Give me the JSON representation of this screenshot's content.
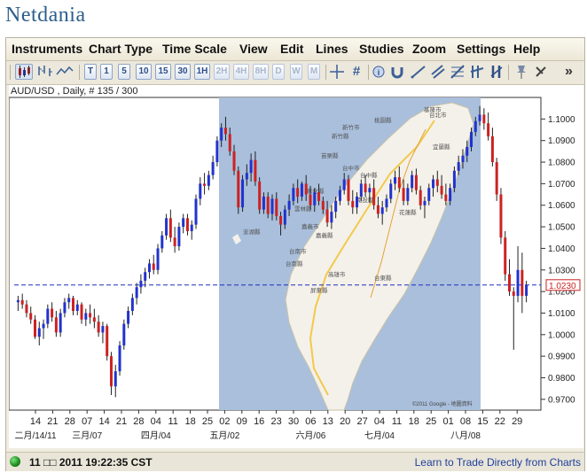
{
  "brand": "Netdania",
  "menu": [
    "Instruments",
    "Chart Type",
    "Time Scale",
    "View",
    "Edit",
    "Lines",
    "Studies",
    "Zoom",
    "Settings",
    "Help"
  ],
  "toolbar": {
    "chart_type_icons": [
      "candlestick-chart-icon",
      "bar-chart-icon",
      "line-chart-icon"
    ],
    "timescales": [
      "T",
      "1",
      "5",
      "10",
      "15",
      "30",
      "1H",
      "2H",
      "4H",
      "8H",
      "D",
      "W",
      "M"
    ],
    "tool_icons": [
      "crosshair-icon",
      "grid-icon",
      "info-icon",
      "magnet-icon",
      "trendline-icon",
      "channel-icon",
      "fibonacci-icon",
      "parallel-lines-icon",
      "vertical-tools-icon",
      "pin-icon",
      "delete-icon"
    ],
    "more": "»"
  },
  "symbol_label": "AUD/USD , Daily, # 135 / 300",
  "status": {
    "time": "11 □□ 2011 19:22:35 CST",
    "link": "Learn to Trade Directly from Charts"
  },
  "map_overlay": {
    "copyright": "©2011 Google - 地圖資料",
    "cities": [
      "基隆市",
      "台北市",
      "桃園縣",
      "新竹市",
      "新竹縣",
      "宜蘭縣",
      "苗栗縣",
      "台中市",
      "台中縣",
      "彰化縣",
      "南投縣",
      "雲林縣",
      "花蓮縣",
      "嘉義市",
      "嘉義縣",
      "台南市",
      "台南縣",
      "高雄市",
      "台東縣",
      "屏東縣",
      "澎湖縣"
    ]
  },
  "chart_data": {
    "type": "candlestick",
    "symbol": "AUD/USD",
    "current_price": "1.0230",
    "ylim": [
      0.965,
      1.11
    ],
    "y_ticks": [
      "1.1000",
      "1.0900",
      "1.0800",
      "1.0700",
      "1.0600",
      "1.0500",
      "1.0400",
      "1.0300",
      "1.0200",
      "1.0100",
      "1.0000",
      "0.9900",
      "0.9800",
      "0.9700"
    ],
    "x_day_ticks": [
      "14",
      "21",
      "28",
      "07",
      "14",
      "21",
      "28",
      "04",
      "11",
      "18",
      "25",
      "02",
      "09",
      "16",
      "23",
      "30",
      "06",
      "13",
      "20",
      "27",
      "04",
      "11",
      "18",
      "25",
      "01",
      "08",
      "15",
      "22",
      "29"
    ],
    "x_month_ticks": [
      "二月/14/11",
      "三月/07",
      "四月/04",
      "五月/02",
      "六月/06",
      "七月/04",
      "八月/08"
    ],
    "candles": [
      {
        "o": 1.015,
        "h": 1.018,
        "l": 1.011,
        "c": 1.016
      },
      {
        "o": 1.016,
        "h": 1.019,
        "l": 1.012,
        "c": 1.014
      },
      {
        "o": 1.014,
        "h": 1.016,
        "l": 1.008,
        "c": 1.01
      },
      {
        "o": 1.01,
        "h": 1.013,
        "l": 1.005,
        "c": 1.007
      },
      {
        "o": 1.007,
        "h": 1.009,
        "l": 0.998,
        "c": 0.999
      },
      {
        "o": 0.999,
        "h": 1.006,
        "l": 0.995,
        "c": 1.003
      },
      {
        "o": 1.003,
        "h": 1.007,
        "l": 0.998,
        "c": 1.005
      },
      {
        "o": 1.005,
        "h": 1.014,
        "l": 1.003,
        "c": 1.012
      },
      {
        "o": 1.012,
        "h": 1.015,
        "l": 1.006,
        "c": 1.008
      },
      {
        "o": 1.008,
        "h": 1.011,
        "l": 0.999,
        "c": 1.001
      },
      {
        "o": 1.001,
        "h": 1.012,
        "l": 0.999,
        "c": 1.01
      },
      {
        "o": 1.01,
        "h": 1.017,
        "l": 1.008,
        "c": 1.015
      },
      {
        "o": 1.015,
        "h": 1.019,
        "l": 1.012,
        "c": 1.017
      },
      {
        "o": 1.017,
        "h": 1.018,
        "l": 1.009,
        "c": 1.011
      },
      {
        "o": 1.011,
        "h": 1.016,
        "l": 1.009,
        "c": 1.014
      },
      {
        "o": 1.014,
        "h": 1.015,
        "l": 1.005,
        "c": 1.007
      },
      {
        "o": 1.007,
        "h": 1.012,
        "l": 1.004,
        "c": 1.01
      },
      {
        "o": 1.01,
        "h": 1.014,
        "l": 1.005,
        "c": 1.008
      },
      {
        "o": 1.008,
        "h": 1.012,
        "l": 1.003,
        "c": 1.006
      },
      {
        "o": 1.006,
        "h": 1.009,
        "l": 0.999,
        "c": 1.001
      },
      {
        "o": 1.001,
        "h": 1.006,
        "l": 0.996,
        "c": 1.004
      },
      {
        "o": 1.004,
        "h": 1.005,
        "l": 0.988,
        "c": 0.99
      },
      {
        "o": 0.99,
        "h": 0.992,
        "l": 0.972,
        "c": 0.976
      },
      {
        "o": 0.976,
        "h": 0.986,
        "l": 0.971,
        "c": 0.983
      },
      {
        "o": 0.983,
        "h": 0.997,
        "l": 0.981,
        "c": 0.995
      },
      {
        "o": 0.995,
        "h": 1.007,
        "l": 0.993,
        "c": 1.005
      },
      {
        "o": 1.005,
        "h": 1.013,
        "l": 1.003,
        "c": 1.011
      },
      {
        "o": 1.011,
        "h": 1.019,
        "l": 1.009,
        "c": 1.017
      },
      {
        "o": 1.017,
        "h": 1.024,
        "l": 1.014,
        "c": 1.022
      },
      {
        "o": 1.022,
        "h": 1.028,
        "l": 1.019,
        "c": 1.025
      },
      {
        "o": 1.025,
        "h": 1.031,
        "l": 1.022,
        "c": 1.029
      },
      {
        "o": 1.029,
        "h": 1.035,
        "l": 1.026,
        "c": 1.033
      },
      {
        "o": 1.033,
        "h": 1.037,
        "l": 1.028,
        "c": 1.03
      },
      {
        "o": 1.03,
        "h": 1.042,
        "l": 1.028,
        "c": 1.04
      },
      {
        "o": 1.04,
        "h": 1.048,
        "l": 1.038,
        "c": 1.046
      },
      {
        "o": 1.046,
        "h": 1.056,
        "l": 1.044,
        "c": 1.054
      },
      {
        "o": 1.054,
        "h": 1.058,
        "l": 1.043,
        "c": 1.045
      },
      {
        "o": 1.045,
        "h": 1.05,
        "l": 1.038,
        "c": 1.041
      },
      {
        "o": 1.041,
        "h": 1.052,
        "l": 1.039,
        "c": 1.05
      },
      {
        "o": 1.05,
        "h": 1.056,
        "l": 1.047,
        "c": 1.054
      },
      {
        "o": 1.054,
        "h": 1.056,
        "l": 1.046,
        "c": 1.048
      },
      {
        "o": 1.048,
        "h": 1.053,
        "l": 1.044,
        "c": 1.051
      },
      {
        "o": 1.051,
        "h": 1.065,
        "l": 1.049,
        "c": 1.063
      },
      {
        "o": 1.063,
        "h": 1.073,
        "l": 1.06,
        "c": 1.07
      },
      {
        "o": 1.07,
        "h": 1.075,
        "l": 1.065,
        "c": 1.069
      },
      {
        "o": 1.069,
        "h": 1.076,
        "l": 1.067,
        "c": 1.074
      },
      {
        "o": 1.074,
        "h": 1.083,
        "l": 1.072,
        "c": 1.08
      },
      {
        "o": 1.08,
        "h": 1.092,
        "l": 1.078,
        "c": 1.09
      },
      {
        "o": 1.09,
        "h": 1.098,
        "l": 1.087,
        "c": 1.096
      },
      {
        "o": 1.096,
        "h": 1.101,
        "l": 1.09,
        "c": 1.093
      },
      {
        "o": 1.093,
        "h": 1.096,
        "l": 1.083,
        "c": 1.085
      },
      {
        "o": 1.085,
        "h": 1.088,
        "l": 1.074,
        "c": 1.076
      },
      {
        "o": 1.076,
        "h": 1.078,
        "l": 1.056,
        "c": 1.059
      },
      {
        "o": 1.059,
        "h": 1.074,
        "l": 1.057,
        "c": 1.072
      },
      {
        "o": 1.072,
        "h": 1.079,
        "l": 1.069,
        "c": 1.075
      },
      {
        "o": 1.075,
        "h": 1.084,
        "l": 1.071,
        "c": 1.081
      },
      {
        "o": 1.081,
        "h": 1.085,
        "l": 1.069,
        "c": 1.071
      },
      {
        "o": 1.071,
        "h": 1.073,
        "l": 1.056,
        "c": 1.058
      },
      {
        "o": 1.058,
        "h": 1.066,
        "l": 1.056,
        "c": 1.064
      },
      {
        "o": 1.064,
        "h": 1.066,
        "l": 1.054,
        "c": 1.056
      },
      {
        "o": 1.056,
        "h": 1.065,
        "l": 1.053,
        "c": 1.063
      },
      {
        "o": 1.063,
        "h": 1.066,
        "l": 1.053,
        "c": 1.055
      },
      {
        "o": 1.055,
        "h": 1.057,
        "l": 1.046,
        "c": 1.051
      },
      {
        "o": 1.051,
        "h": 1.06,
        "l": 1.049,
        "c": 1.058
      },
      {
        "o": 1.058,
        "h": 1.065,
        "l": 1.055,
        "c": 1.062
      },
      {
        "o": 1.062,
        "h": 1.07,
        "l": 1.06,
        "c": 1.068
      },
      {
        "o": 1.068,
        "h": 1.072,
        "l": 1.061,
        "c": 1.064
      },
      {
        "o": 1.064,
        "h": 1.071,
        "l": 1.062,
        "c": 1.07
      },
      {
        "o": 1.07,
        "h": 1.074,
        "l": 1.062,
        "c": 1.065
      },
      {
        "o": 1.065,
        "h": 1.069,
        "l": 1.058,
        "c": 1.06
      },
      {
        "o": 1.06,
        "h": 1.068,
        "l": 1.057,
        "c": 1.066
      },
      {
        "o": 1.066,
        "h": 1.07,
        "l": 1.06,
        "c": 1.062
      },
      {
        "o": 1.062,
        "h": 1.064,
        "l": 1.056,
        "c": 1.058
      },
      {
        "o": 1.058,
        "h": 1.062,
        "l": 1.05,
        "c": 1.052
      },
      {
        "o": 1.052,
        "h": 1.06,
        "l": 1.049,
        "c": 1.057
      },
      {
        "o": 1.057,
        "h": 1.064,
        "l": 1.054,
        "c": 1.062
      },
      {
        "o": 1.062,
        "h": 1.069,
        "l": 1.06,
        "c": 1.067
      },
      {
        "o": 1.067,
        "h": 1.075,
        "l": 1.065,
        "c": 1.072
      },
      {
        "o": 1.072,
        "h": 1.074,
        "l": 1.06,
        "c": 1.062
      },
      {
        "o": 1.062,
        "h": 1.067,
        "l": 1.056,
        "c": 1.059
      },
      {
        "o": 1.059,
        "h": 1.066,
        "l": 1.056,
        "c": 1.064
      },
      {
        "o": 1.064,
        "h": 1.072,
        "l": 1.062,
        "c": 1.07
      },
      {
        "o": 1.07,
        "h": 1.074,
        "l": 1.064,
        "c": 1.066
      },
      {
        "o": 1.066,
        "h": 1.07,
        "l": 1.061,
        "c": 1.068
      },
      {
        "o": 1.068,
        "h": 1.072,
        "l": 1.058,
        "c": 1.06
      },
      {
        "o": 1.06,
        "h": 1.064,
        "l": 1.054,
        "c": 1.056
      },
      {
        "o": 1.056,
        "h": 1.062,
        "l": 1.051,
        "c": 1.059
      },
      {
        "o": 1.059,
        "h": 1.065,
        "l": 1.057,
        "c": 1.063
      },
      {
        "o": 1.063,
        "h": 1.072,
        "l": 1.061,
        "c": 1.07
      },
      {
        "o": 1.07,
        "h": 1.076,
        "l": 1.067,
        "c": 1.073
      },
      {
        "o": 1.073,
        "h": 1.078,
        "l": 1.066,
        "c": 1.068
      },
      {
        "o": 1.068,
        "h": 1.072,
        "l": 1.06,
        "c": 1.062
      },
      {
        "o": 1.062,
        "h": 1.07,
        "l": 1.06,
        "c": 1.068
      },
      {
        "o": 1.068,
        "h": 1.076,
        "l": 1.066,
        "c": 1.074
      },
      {
        "o": 1.074,
        "h": 1.077,
        "l": 1.065,
        "c": 1.067
      },
      {
        "o": 1.067,
        "h": 1.069,
        "l": 1.058,
        "c": 1.06
      },
      {
        "o": 1.06,
        "h": 1.064,
        "l": 1.054,
        "c": 1.062
      },
      {
        "o": 1.062,
        "h": 1.07,
        "l": 1.06,
        "c": 1.068
      },
      {
        "o": 1.068,
        "h": 1.074,
        "l": 1.064,
        "c": 1.072
      },
      {
        "o": 1.072,
        "h": 1.076,
        "l": 1.066,
        "c": 1.069
      },
      {
        "o": 1.069,
        "h": 1.074,
        "l": 1.063,
        "c": 1.065
      },
      {
        "o": 1.065,
        "h": 1.07,
        "l": 1.06,
        "c": 1.062
      },
      {
        "o": 1.062,
        "h": 1.07,
        "l": 1.06,
        "c": 1.068
      },
      {
        "o": 1.068,
        "h": 1.078,
        "l": 1.066,
        "c": 1.076
      },
      {
        "o": 1.076,
        "h": 1.083,
        "l": 1.074,
        "c": 1.08
      },
      {
        "o": 1.08,
        "h": 1.086,
        "l": 1.077,
        "c": 1.083
      },
      {
        "o": 1.083,
        "h": 1.09,
        "l": 1.08,
        "c": 1.087
      },
      {
        "o": 1.087,
        "h": 1.096,
        "l": 1.085,
        "c": 1.094
      },
      {
        "o": 1.094,
        "h": 1.101,
        "l": 1.092,
        "c": 1.099
      },
      {
        "o": 1.099,
        "h": 1.106,
        "l": 1.097,
        "c": 1.102
      },
      {
        "o": 1.102,
        "h": 1.105,
        "l": 1.095,
        "c": 1.098
      },
      {
        "o": 1.098,
        "h": 1.103,
        "l": 1.09,
        "c": 1.092
      },
      {
        "o": 1.092,
        "h": 1.096,
        "l": 1.078,
        "c": 1.08
      },
      {
        "o": 1.08,
        "h": 1.082,
        "l": 1.062,
        "c": 1.065
      },
      {
        "o": 1.065,
        "h": 1.068,
        "l": 1.042,
        "c": 1.045
      },
      {
        "o": 1.045,
        "h": 1.048,
        "l": 1.025,
        "c": 1.028
      },
      {
        "o": 1.028,
        "h": 1.035,
        "l": 1.018,
        "c": 1.02
      },
      {
        "o": 1.02,
        "h": 1.022,
        "l": 0.993,
        "c": 1.018
      },
      {
        "o": 1.018,
        "h": 1.041,
        "l": 1.015,
        "c": 1.03
      },
      {
        "o": 1.03,
        "h": 1.038,
        "l": 1.01,
        "c": 1.018
      },
      {
        "o": 1.018,
        "h": 1.025,
        "l": 1.015,
        "c": 1.023
      }
    ]
  },
  "colors": {
    "up": "#2233cc",
    "down": "#cc2222",
    "map_water": "#a9bfdc",
    "price_line": "#1f2fbf",
    "brand": "#2d5e8c"
  }
}
